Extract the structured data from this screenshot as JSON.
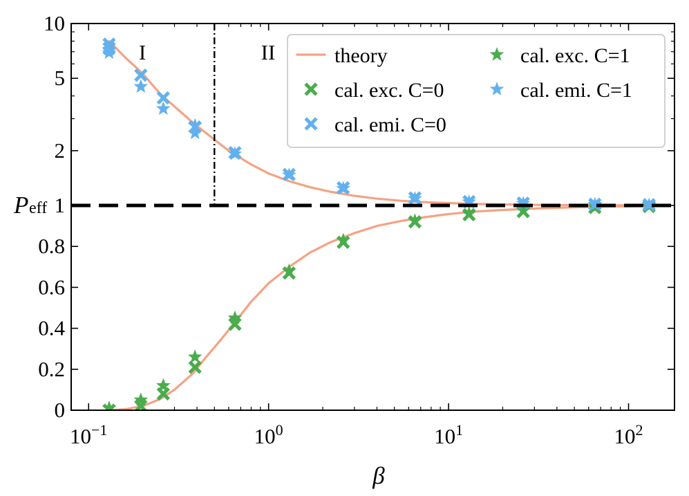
{
  "chart_data": {
    "type": "scatter",
    "title": "",
    "xlabel": "β",
    "ylabel": "P",
    "ylabel_subscript": "eff",
    "x_scale": "log",
    "xlim": [
      0.08,
      180
    ],
    "y_scale": "piecewise: linear from 0 to 1, log from 1 to 10",
    "ylim": [
      0,
      10
    ],
    "x_ticks": [
      {
        "value": 0.1,
        "base": "10",
        "exp": "−1"
      },
      {
        "value": 1,
        "base": "10",
        "exp": "0"
      },
      {
        "value": 10,
        "base": "10",
        "exp": "1"
      },
      {
        "value": 100,
        "base": "10",
        "exp": "2"
      }
    ],
    "y_ticks": [
      {
        "value": 0,
        "label": "0"
      },
      {
        "value": 0.2,
        "label": "0.2"
      },
      {
        "value": 0.4,
        "label": "0.4"
      },
      {
        "value": 0.6,
        "label": "0.6"
      },
      {
        "value": 0.8,
        "label": "0.8"
      },
      {
        "value": 1,
        "label": "1"
      },
      {
        "value": 2,
        "label": "2"
      },
      {
        "value": 5,
        "label": "5"
      },
      {
        "value": 10,
        "label": "10"
      }
    ],
    "regions": [
      {
        "label": "I"
      },
      {
        "label": "II"
      }
    ],
    "boundary_x": 0.5,
    "reference_y": 1,
    "legend": {
      "location": "top-right",
      "entries": [
        {
          "series": "theory",
          "label": "theory"
        },
        {
          "series": "exc0",
          "label": "cal. exc. C=0"
        },
        {
          "series": "emi0",
          "label": "cal. emi. C=0"
        },
        {
          "series": "exc1",
          "label": "cal. exc. C=1"
        },
        {
          "series": "emi1",
          "label": "cal. emi. C=1"
        }
      ]
    },
    "series": [
      {
        "name": "theory",
        "kind": "line",
        "color": "#f5a283",
        "upper": {
          "x": [
            0.13,
            0.16,
            0.2,
            0.25,
            0.3,
            0.38,
            0.45,
            0.5,
            0.6,
            0.8,
            1.0,
            1.3,
            1.7,
            2.2,
            3,
            4,
            5.5,
            7,
            10,
            14,
            20,
            30,
            50,
            80,
            130
          ],
          "y": [
            8.0,
            6.5,
            5.3,
            4.1,
            3.5,
            2.85,
            2.5,
            2.3,
            2.0,
            1.68,
            1.5,
            1.36,
            1.26,
            1.19,
            1.13,
            1.09,
            1.06,
            1.045,
            1.03,
            1.02,
            1.013,
            1.008,
            1.004,
            1.002,
            1.001
          ]
        },
        "lower": {
          "x": [
            0.13,
            0.16,
            0.2,
            0.25,
            0.3,
            0.38,
            0.45,
            0.55,
            0.65,
            0.8,
            1.0,
            1.3,
            1.7,
            2.2,
            3,
            4,
            5.5,
            7,
            10,
            14,
            20,
            30,
            50,
            80,
            130
          ],
          "y": [
            0.0,
            0.005,
            0.02,
            0.055,
            0.1,
            0.18,
            0.26,
            0.35,
            0.43,
            0.53,
            0.62,
            0.7,
            0.77,
            0.82,
            0.865,
            0.9,
            0.925,
            0.94,
            0.958,
            0.97,
            0.978,
            0.985,
            0.991,
            0.995,
            0.997
          ]
        }
      },
      {
        "name": "exc0",
        "kind": "marker",
        "marker": "x",
        "color": "#4aac4c",
        "x": [
          0.13,
          0.195,
          0.26,
          0.39,
          0.65,
          1.3,
          2.6,
          6.5,
          13,
          26,
          65,
          130
        ],
        "y": [
          0.0,
          0.02,
          0.08,
          0.21,
          0.42,
          0.67,
          0.82,
          0.92,
          0.955,
          0.97,
          0.99,
          0.995
        ]
      },
      {
        "name": "emi0",
        "kind": "marker",
        "marker": "x",
        "color": "#62b1ee",
        "x": [
          0.13,
          0.13,
          0.195,
          0.26,
          0.39,
          0.65,
          1.3,
          2.6,
          6.5,
          13,
          26,
          65,
          130
        ],
        "y": [
          7.7,
          7.3,
          5.2,
          3.9,
          2.7,
          1.95,
          1.48,
          1.25,
          1.1,
          1.05,
          1.03,
          1.015,
          1.01
        ]
      },
      {
        "name": "exc1",
        "kind": "marker",
        "marker": "star",
        "color": "#4aac4c",
        "x": [
          0.13,
          0.195,
          0.26,
          0.39,
          0.65,
          1.3,
          2.6,
          6.5,
          13,
          26,
          65,
          130
        ],
        "y": [
          0.01,
          0.05,
          0.12,
          0.26,
          0.45,
          0.68,
          0.83,
          0.925,
          0.96,
          0.975,
          0.99,
          0.996
        ]
      },
      {
        "name": "emi1",
        "kind": "marker",
        "marker": "star",
        "color": "#62b1ee",
        "x": [
          0.13,
          0.13,
          0.195,
          0.26,
          0.39,
          0.39,
          0.65,
          1.3,
          2.6,
          6.5,
          13,
          26,
          65,
          130
        ],
        "y": [
          7.2,
          6.9,
          4.5,
          3.4,
          2.75,
          2.5,
          1.92,
          1.47,
          1.24,
          1.09,
          1.045,
          1.025,
          1.012,
          1.006
        ]
      }
    ]
  }
}
